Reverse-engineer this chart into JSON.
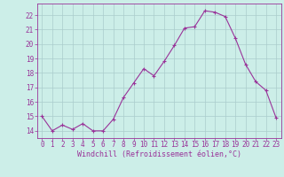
{
  "x": [
    0,
    1,
    2,
    3,
    4,
    5,
    6,
    7,
    8,
    9,
    10,
    11,
    12,
    13,
    14,
    15,
    16,
    17,
    18,
    19,
    20,
    21,
    22,
    23
  ],
  "y": [
    15.0,
    14.0,
    14.4,
    14.1,
    14.5,
    14.0,
    14.0,
    14.8,
    16.3,
    17.3,
    18.3,
    17.8,
    18.8,
    19.9,
    21.1,
    21.2,
    22.3,
    22.2,
    21.9,
    20.4,
    18.6,
    17.4,
    16.8,
    14.9
  ],
  "line_color": "#993399",
  "marker": "+",
  "marker_size": 3,
  "marker_linewidth": 0.8,
  "line_width": 0.8,
  "background_color": "#cceee8",
  "grid_color": "#aacccc",
  "ylabel_ticks": [
    14,
    15,
    16,
    17,
    18,
    19,
    20,
    21,
    22
  ],
  "xlabel": "Windchill (Refroidissement éolien,°C)",
  "xlabel_fontsize": 6.0,
  "tick_fontsize": 5.5,
  "ylim": [
    13.5,
    22.8
  ],
  "xlim": [
    -0.5,
    23.5
  ]
}
